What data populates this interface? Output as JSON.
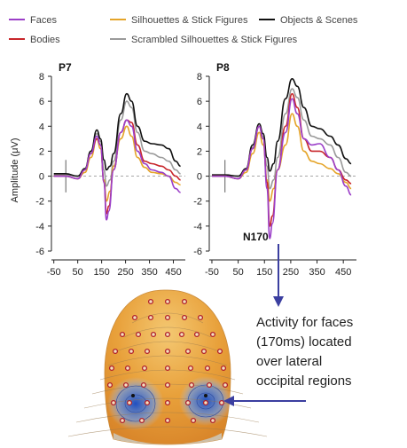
{
  "chart_data": {
    "type": "line",
    "legend": [
      {
        "name": "Faces",
        "color": "#9b3fc8"
      },
      {
        "name": "Silhouettes & Stick Figures",
        "color": "#e5a52a"
      },
      {
        "name": "Objects & Scenes",
        "color": "#111111"
      },
      {
        "name": "Bodies",
        "color": "#c8262b"
      },
      {
        "name": "Scrambled Silhouettes & Stick Figures",
        "color": "#9a9a9a"
      }
    ],
    "ylabel": "Amplitude (μV)",
    "ylim": [
      -6,
      8
    ],
    "xlim": [
      -60,
      500
    ],
    "xticks": [
      -50,
      50,
      150,
      250,
      350,
      450
    ],
    "yticks": [
      -6,
      -4,
      -2,
      0,
      2,
      4,
      6,
      8
    ],
    "panels": [
      {
        "title": "P7",
        "series": [
          {
            "name": "Faces",
            "points": [
              [
                -50,
                0
              ],
              [
                0,
                0
              ],
              [
                50,
                -0.2
              ],
              [
                80,
                0.5
              ],
              [
                105,
                1.8
              ],
              [
                130,
                3.2
              ],
              [
                145,
                2.5
              ],
              [
                160,
                -0.5
              ],
              [
                170,
                -3.5
              ],
              [
                180,
                -2.8
              ],
              [
                200,
                0.5
              ],
              [
                230,
                3.5
              ],
              [
                255,
                4.5
              ],
              [
                275,
                4
              ],
              [
                300,
                2
              ],
              [
                330,
                1
              ],
              [
                360,
                0.5
              ],
              [
                400,
                0.3
              ],
              [
                430,
                0
              ],
              [
                460,
                -1
              ],
              [
                480,
                -1.3
              ]
            ]
          },
          {
            "name": "Silhouettes & Stick Figures",
            "points": [
              [
                -50,
                0
              ],
              [
                0,
                0
              ],
              [
                50,
                -0.2
              ],
              [
                80,
                0.3
              ],
              [
                105,
                1.5
              ],
              [
                130,
                3
              ],
              [
                145,
                2.2
              ],
              [
                160,
                -0.3
              ],
              [
                170,
                -2
              ],
              [
                185,
                -1.2
              ],
              [
                200,
                0.8
              ],
              [
                230,
                3
              ],
              [
                255,
                4
              ],
              [
                275,
                3.2
              ],
              [
                300,
                1.5
              ],
              [
                330,
                0.7
              ],
              [
                360,
                0.3
              ],
              [
                400,
                0.2
              ],
              [
                430,
                0
              ],
              [
                460,
                -0.5
              ],
              [
                480,
                -0.7
              ]
            ]
          },
          {
            "name": "Objects & Scenes",
            "points": [
              [
                -50,
                0.2
              ],
              [
                0,
                0.2
              ],
              [
                50,
                0
              ],
              [
                80,
                0.6
              ],
              [
                105,
                2
              ],
              [
                130,
                3.7
              ],
              [
                145,
                3
              ],
              [
                160,
                1.3
              ],
              [
                170,
                0.5
              ],
              [
                185,
                0.8
              ],
              [
                200,
                1.8
              ],
              [
                230,
                5
              ],
              [
                255,
                6.6
              ],
              [
                275,
                6
              ],
              [
                300,
                4
              ],
              [
                330,
                2.8
              ],
              [
                360,
                2.6
              ],
              [
                400,
                2.5
              ],
              [
                430,
                2.2
              ],
              [
                460,
                1.2
              ],
              [
                480,
                0.8
              ]
            ]
          },
          {
            "name": "Bodies",
            "points": [
              [
                -50,
                0
              ],
              [
                0,
                0
              ],
              [
                50,
                -0.2
              ],
              [
                80,
                0.5
              ],
              [
                105,
                1.8
              ],
              [
                130,
                3
              ],
              [
                145,
                2.5
              ],
              [
                160,
                -0.5
              ],
              [
                170,
                -3
              ],
              [
                180,
                -2.4
              ],
              [
                200,
                0.5
              ],
              [
                230,
                3.5
              ],
              [
                255,
                4.5
              ],
              [
                275,
                4.3
              ],
              [
                300,
                2.5
              ],
              [
                330,
                1.2
              ],
              [
                360,
                1
              ],
              [
                400,
                0.8
              ],
              [
                430,
                0.5
              ],
              [
                460,
                0
              ],
              [
                480,
                -0.3
              ]
            ]
          },
          {
            "name": "Scrambled Silhouettes & Stick Figures",
            "points": [
              [
                -50,
                0.1
              ],
              [
                0,
                0.1
              ],
              [
                50,
                0
              ],
              [
                80,
                0.5
              ],
              [
                105,
                2
              ],
              [
                130,
                3.4
              ],
              [
                145,
                2.8
              ],
              [
                160,
                0.5
              ],
              [
                170,
                -0.8
              ],
              [
                185,
                -0.3
              ],
              [
                200,
                1.2
              ],
              [
                230,
                4.5
              ],
              [
                255,
                6
              ],
              [
                275,
                5.5
              ],
              [
                300,
                3.5
              ],
              [
                330,
                2
              ],
              [
                360,
                1.8
              ],
              [
                400,
                1.5
              ],
              [
                430,
                1.2
              ],
              [
                460,
                0.5
              ],
              [
                480,
                0.2
              ]
            ]
          }
        ]
      },
      {
        "title": "P8",
        "series": [
          {
            "name": "Faces",
            "points": [
              [
                -50,
                0
              ],
              [
                0,
                0
              ],
              [
                50,
                -0.2
              ],
              [
                80,
                0.5
              ],
              [
                105,
                2.2
              ],
              [
                130,
                4
              ],
              [
                145,
                3
              ],
              [
                160,
                -1
              ],
              [
                170,
                -5
              ],
              [
                180,
                -3.8
              ],
              [
                200,
                0.5
              ],
              [
                230,
                3.5
              ],
              [
                255,
                6.2
              ],
              [
                275,
                5
              ],
              [
                300,
                3
              ],
              [
                330,
                2.5
              ],
              [
                360,
                2.6
              ],
              [
                400,
                1.5
              ],
              [
                430,
                0.5
              ],
              [
                460,
                -0.8
              ],
              [
                480,
                -1.5
              ]
            ]
          },
          {
            "name": "Silhouettes & Stick Figures",
            "points": [
              [
                -50,
                0
              ],
              [
                0,
                0
              ],
              [
                50,
                -0.2
              ],
              [
                80,
                0.3
              ],
              [
                105,
                1.8
              ],
              [
                130,
                3.5
              ],
              [
                145,
                2.5
              ],
              [
                160,
                -0.3
              ],
              [
                170,
                -2
              ],
              [
                185,
                -1
              ],
              [
                200,
                0.5
              ],
              [
                230,
                2.5
              ],
              [
                255,
                5
              ],
              [
                275,
                4
              ],
              [
                300,
                2
              ],
              [
                330,
                1.2
              ],
              [
                360,
                1
              ],
              [
                400,
                0.6
              ],
              [
                430,
                0.2
              ],
              [
                460,
                -0.5
              ],
              [
                480,
                -1
              ]
            ]
          },
          {
            "name": "Objects & Scenes",
            "points": [
              [
                -50,
                0.1
              ],
              [
                0,
                0.1
              ],
              [
                50,
                0
              ],
              [
                80,
                0.6
              ],
              [
                105,
                2.5
              ],
              [
                130,
                4.2
              ],
              [
                145,
                3.4
              ],
              [
                160,
                1.5
              ],
              [
                170,
                0.4
              ],
              [
                185,
                1
              ],
              [
                200,
                2.8
              ],
              [
                230,
                6.2
              ],
              [
                255,
                7.8
              ],
              [
                275,
                7.2
              ],
              [
                300,
                5.5
              ],
              [
                330,
                4
              ],
              [
                360,
                3.8
              ],
              [
                400,
                3.2
              ],
              [
                430,
                2.5
              ],
              [
                460,
                1.4
              ],
              [
                480,
                1
              ]
            ]
          },
          {
            "name": "Bodies",
            "points": [
              [
                -50,
                0
              ],
              [
                0,
                0
              ],
              [
                50,
                -0.2
              ],
              [
                80,
                0.5
              ],
              [
                105,
                2.2
              ],
              [
                130,
                4
              ],
              [
                145,
                3
              ],
              [
                160,
                -0.5
              ],
              [
                170,
                -4
              ],
              [
                180,
                -3.2
              ],
              [
                200,
                0.5
              ],
              [
                230,
                4
              ],
              [
                255,
                6.6
              ],
              [
                275,
                5.5
              ],
              [
                300,
                3
              ],
              [
                330,
                2
              ],
              [
                360,
                2
              ],
              [
                400,
                1.5
              ],
              [
                430,
                0.5
              ],
              [
                460,
                -0.3
              ],
              [
                480,
                -0.6
              ]
            ]
          },
          {
            "name": "Scrambled Silhouettes & Stick Figures",
            "points": [
              [
                -50,
                0.1
              ],
              [
                0,
                0.1
              ],
              [
                50,
                0
              ],
              [
                80,
                0.5
              ],
              [
                105,
                2.3
              ],
              [
                130,
                4
              ],
              [
                145,
                3.2
              ],
              [
                160,
                0.8
              ],
              [
                170,
                -1
              ],
              [
                185,
                -0.3
              ],
              [
                200,
                1.5
              ],
              [
                230,
                5
              ],
              [
                255,
                7
              ],
              [
                275,
                6.3
              ],
              [
                300,
                4.5
              ],
              [
                330,
                3.2
              ],
              [
                360,
                3
              ],
              [
                400,
                2.5
              ],
              [
                430,
                1.5
              ],
              [
                460,
                0.3
              ],
              [
                480,
                0
              ]
            ]
          }
        ]
      }
    ],
    "annotation": "N170"
  },
  "note": {
    "lines": [
      "Activity for faces",
      "(170ms) located",
      "over lateral",
      "occipital regions"
    ]
  },
  "colors": {
    "arrow": "#3b3fa0",
    "head_warm": "#e8a03a",
    "head_cool": "#2f5fc8",
    "electrode": "#b01e2a"
  }
}
